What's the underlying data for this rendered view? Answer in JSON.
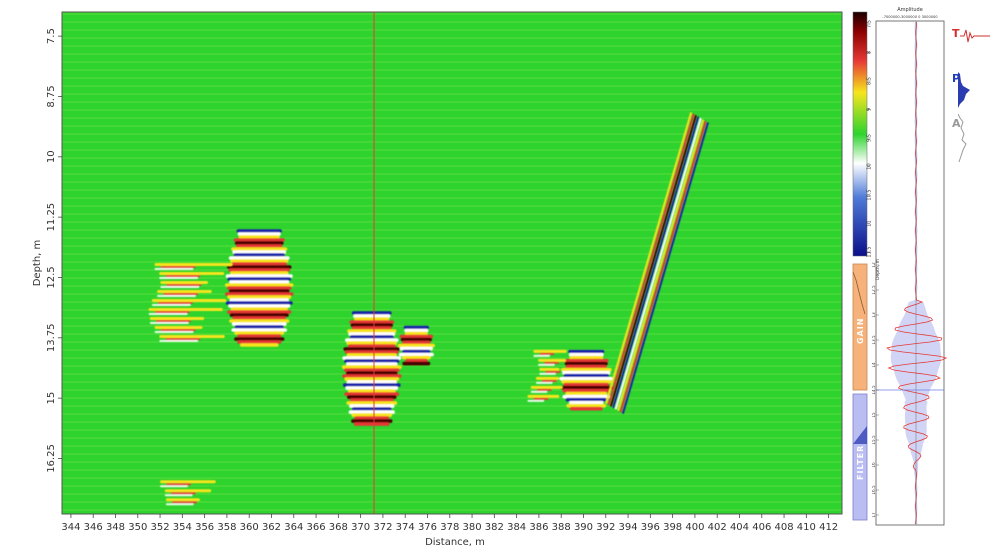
{
  "chart_data": {
    "type": "heatmap",
    "title": "",
    "xlabel": "Distance, m",
    "ylabel": "Depth, m",
    "xlim": [
      343.2,
      413.2
    ],
    "ylim": [
      7.0,
      17.4
    ],
    "x_ticks": [
      344,
      346,
      348,
      350,
      352,
      354,
      356,
      358,
      360,
      362,
      364,
      366,
      368,
      370,
      372,
      374,
      376,
      378,
      380,
      382,
      384,
      386,
      388,
      390,
      392,
      394,
      396,
      398,
      400,
      402,
      404,
      406,
      408,
      410,
      412
    ],
    "y_ticks": [
      "7.5",
      "8.75",
      "10",
      "11.25",
      "12.5",
      "13.75",
      "15",
      "16.25"
    ],
    "cursor_distance": 371.2,
    "background_color": "#2ed32e",
    "colormap": [
      "#0b0f8a",
      "#2a4fd0",
      "#ffffff",
      "#2ed32e",
      "#f5e320",
      "#d11d1d",
      "#1a0000"
    ],
    "reflectors": [
      {
        "type": "blob",
        "x0": 358.0,
        "x1": 363.8,
        "y0": 11.5,
        "y1": 13.9
      },
      {
        "type": "blob",
        "x0": 368.5,
        "x1": 373.5,
        "y0": 13.2,
        "y1": 15.5
      },
      {
        "type": "blob",
        "x0": 373.5,
        "x1": 376.5,
        "y0": 13.5,
        "y1": 14.3
      },
      {
        "type": "blob",
        "x0": 388.0,
        "x1": 392.5,
        "y0": 14.0,
        "y1": 15.2
      },
      {
        "type": "streaks",
        "x0": 351.5,
        "x1": 358.5,
        "y0": 12.2,
        "y1": 13.7
      },
      {
        "type": "streaks",
        "x0": 352.0,
        "x1": 357.0,
        "y0": 16.7,
        "y1": 17.2
      },
      {
        "type": "streaks",
        "x0": 385.5,
        "x1": 388.5,
        "y0": 14.0,
        "y1": 15.0
      },
      {
        "type": "dipping",
        "from": [
          400.4,
          9.2
        ],
        "to": [
          392.8,
          15.2
        ]
      }
    ]
  },
  "colorbar": {
    "ticks": [
      "7.5",
      "8",
      "8.5",
      "9",
      "9.5",
      "10",
      "10.5",
      "11",
      "11.5"
    ]
  },
  "gain_panel": {
    "label": "GAIN",
    "color": "#f6b27a",
    "depth_label": "Depth, m",
    "ticks": [
      "12",
      "12.5",
      "13",
      "13.5",
      "14",
      "14.5",
      "15",
      "15.5",
      "16",
      "16.5",
      "17"
    ]
  },
  "filter_panel": {
    "label": "FILTER",
    "color": "#b9bdf2"
  },
  "trace_panel": {
    "title": "Amplitude",
    "x_ticks": "-7000000-3000000 0 3000000"
  },
  "toggles": [
    {
      "letter": "T",
      "color": "#d32f2f"
    },
    {
      "letter": "P",
      "color": "#1f3fbf"
    },
    {
      "letter": "A",
      "color": "#9a9a9a"
    }
  ]
}
